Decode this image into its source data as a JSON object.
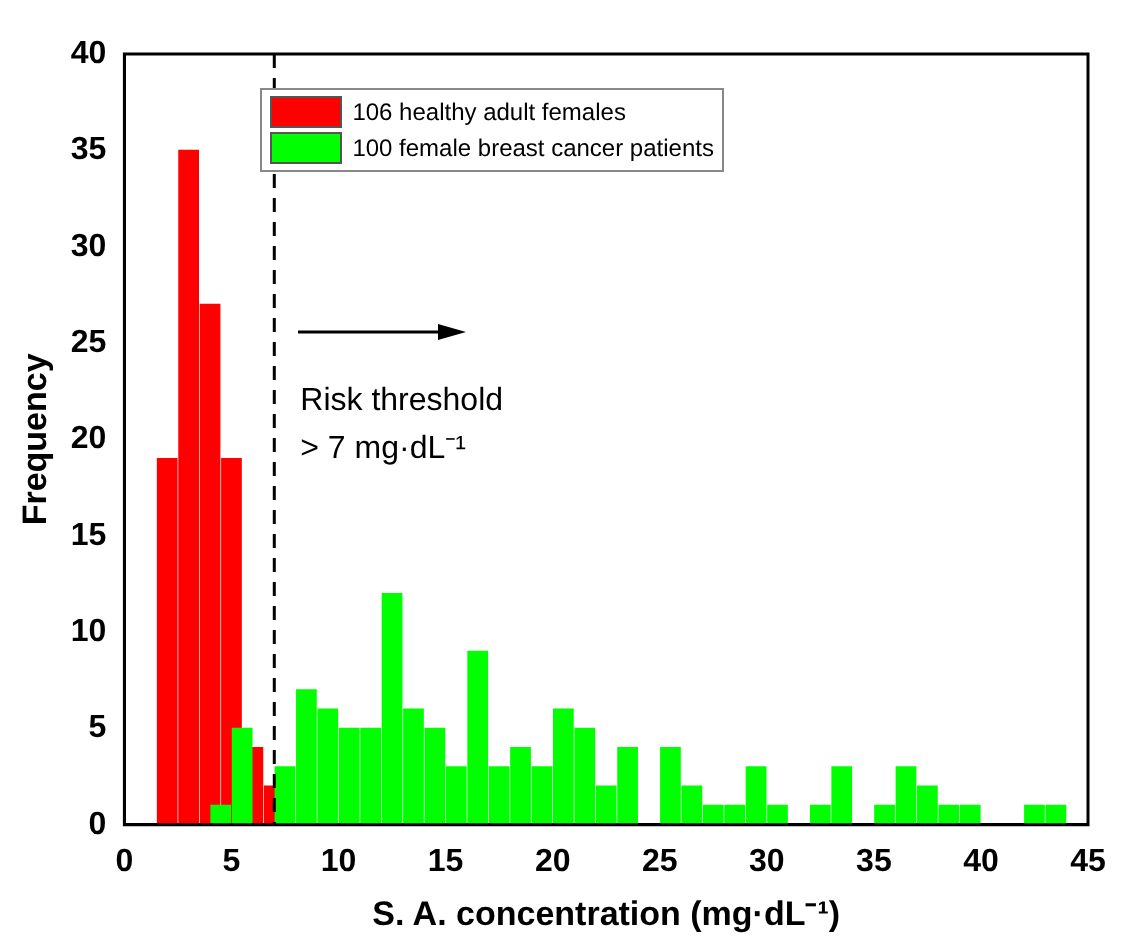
{
  "chart_data": {
    "type": "bar",
    "xlabel": "S. A. concentration (mg·dL⁻¹)",
    "ylabel": "Frequency",
    "xlim": [
      0,
      45
    ],
    "xticks": [
      0,
      5,
      10,
      15,
      20,
      25,
      30,
      35,
      40,
      45
    ],
    "ylim": [
      0,
      40
    ],
    "yticks": [
      0,
      5,
      10,
      15,
      20,
      25,
      30,
      35,
      40
    ],
    "grid": false,
    "legend": "top",
    "series": [
      {
        "name": "106 healthy adult females",
        "color": "#ff0000",
        "x": [
          2,
          3,
          4,
          5,
          6,
          7
        ],
        "values": [
          19,
          35,
          27,
          19,
          4,
          2
        ]
      },
      {
        "name": "100 female breast cancer patients",
        "color": "#00ff00",
        "x": [
          4.5,
          5.5,
          6.5,
          7.5,
          8.5,
          9.5,
          10.5,
          11.5,
          12.5,
          13.5,
          14.5,
          15.5,
          16.5,
          17.5,
          18.5,
          19.5,
          20.5,
          21.5,
          22.5,
          23.5,
          24.5,
          25.5,
          26.5,
          27.5,
          28.5,
          29.5,
          30.5,
          31.5,
          32.5,
          33.5,
          34.5,
          35.5,
          36.5,
          37.5,
          38.5,
          39.5,
          40.5,
          41.5,
          42.5,
          43.5
        ],
        "values": [
          1,
          5,
          0,
          3,
          7,
          6,
          5,
          5,
          12,
          6,
          5,
          3,
          9,
          3,
          4,
          3,
          6,
          5,
          2,
          4,
          0,
          4,
          2,
          1,
          1,
          3,
          1,
          0,
          1,
          3,
          0,
          1,
          3,
          2,
          1,
          1,
          0,
          0,
          1,
          1
        ]
      }
    ],
    "ref_lines": [
      {
        "axis": "x",
        "value": 7,
        "label": "Risk threshold\n> 7 mg·dL⁻¹",
        "line_style": "dashed"
      }
    ]
  }
}
